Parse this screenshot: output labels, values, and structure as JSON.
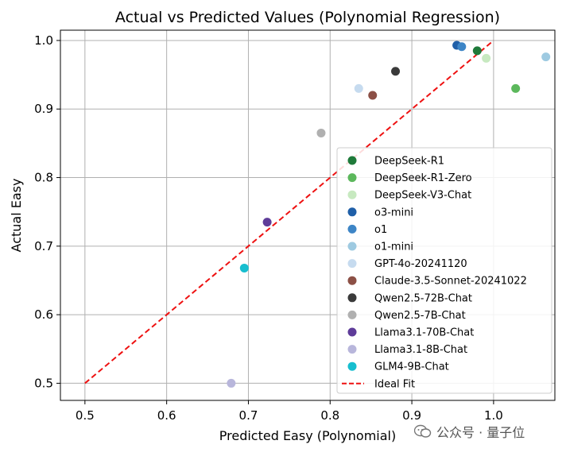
{
  "chart_data": {
    "type": "scatter",
    "title": "Actual vs Predicted Values (Polynomial Regression)",
    "xlabel": "Predicted Easy (Polynomial)",
    "ylabel": "Actual Easy",
    "xlim": [
      0.47,
      1.075
    ],
    "ylim": [
      0.475,
      1.015
    ],
    "xticks": [
      0.5,
      0.6,
      0.7,
      0.8,
      0.9,
      1.0
    ],
    "xtick_labels": [
      "0.5",
      "0.6",
      "0.7",
      "0.8",
      "0.9",
      "1.0"
    ],
    "yticks": [
      0.5,
      0.6,
      0.7,
      0.8,
      0.9,
      1.0
    ],
    "ytick_labels": [
      "0.5",
      "0.6",
      "0.7",
      "0.8",
      "0.9",
      "1.0"
    ],
    "grid": true,
    "legend_position": "right",
    "points": [
      {
        "name": "DeepSeek-R1",
        "x": 0.98,
        "y": 0.985,
        "color": "#1f7a3a"
      },
      {
        "name": "DeepSeek-R1-Zero",
        "x": 1.027,
        "y": 0.93,
        "color": "#5cb85c"
      },
      {
        "name": "DeepSeek-V3-Chat",
        "x": 0.991,
        "y": 0.974,
        "color": "#c7e9c0"
      },
      {
        "name": "o3-mini",
        "x": 0.955,
        "y": 0.993,
        "color": "#1f5fa8"
      },
      {
        "name": "o1",
        "x": 0.961,
        "y": 0.991,
        "color": "#3d85c6"
      },
      {
        "name": "o1-mini",
        "x": 1.064,
        "y": 0.976,
        "color": "#9ecae1"
      },
      {
        "name": "GPT-4o-20241120",
        "x": 0.835,
        "y": 0.93,
        "color": "#c6dbef"
      },
      {
        "name": "Claude-3.5-Sonnet-20241022",
        "x": 0.852,
        "y": 0.92,
        "color": "#8c5046"
      },
      {
        "name": "Qwen2.5-72B-Chat",
        "x": 0.88,
        "y": 0.955,
        "color": "#3a3a3a"
      },
      {
        "name": "Qwen2.5-7B-Chat",
        "x": 0.789,
        "y": 0.865,
        "color": "#b0b0b0"
      },
      {
        "name": "Llama3.1-70B-Chat",
        "x": 0.723,
        "y": 0.735,
        "color": "#5e3c99"
      },
      {
        "name": "Llama3.1-8B-Chat",
        "x": 0.679,
        "y": 0.5,
        "color": "#b8b6db"
      },
      {
        "name": "GLM4-9B-Chat",
        "x": 0.695,
        "y": 0.668,
        "color": "#17becf"
      }
    ],
    "ideal_fit": {
      "name": "Ideal Fit",
      "x": [
        0.5,
        1.0
      ],
      "y": [
        0.5,
        1.0
      ],
      "color": "#ee1111"
    }
  },
  "watermark": {
    "text": "公众号 · 量子位"
  }
}
